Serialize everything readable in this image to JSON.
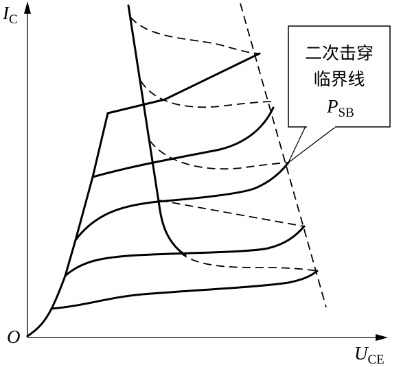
{
  "axes": {
    "y_label": {
      "main": "I",
      "sub": "C"
    },
    "x_label": {
      "main": "U",
      "sub": "CE"
    },
    "origin": "O"
  },
  "callout": {
    "lines": [
      "二次击穿",
      "临界线"
    ],
    "symbol": {
      "main": "P",
      "sub": "SB"
    }
  }
}
